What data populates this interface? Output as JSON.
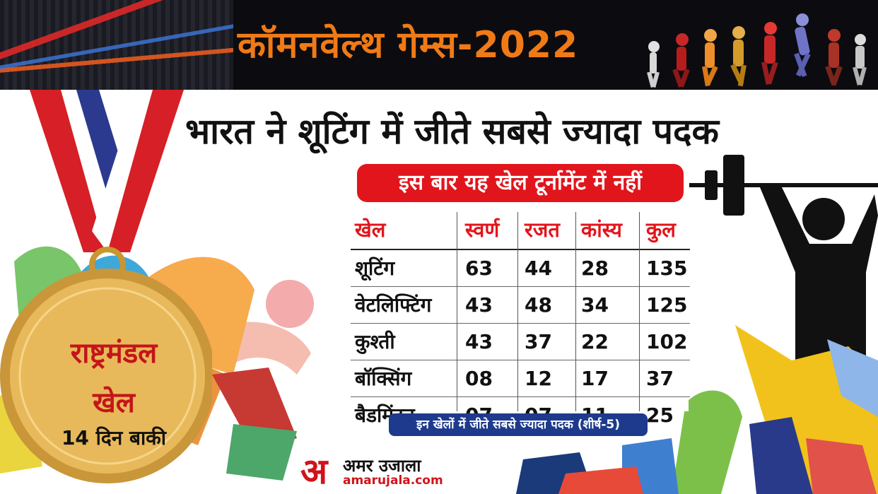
{
  "banner": {
    "title": "कॉमनवेल्थ गेम्स-2022"
  },
  "headline": "भारत ने शूटिंग में जीते सबसे ज्यादा पदक",
  "subheading": "इस बार यह खेल टूर्नामेंट में नहीं",
  "table": {
    "headers": [
      "खेल",
      "स्वर्ण",
      "रजत",
      "कांस्य",
      "कुल"
    ],
    "rows": [
      [
        "शूटिंग",
        "63",
        "44",
        "28",
        "135"
      ],
      [
        "वेटलिफ्टिंग",
        "43",
        "48",
        "34",
        "125"
      ],
      [
        "कुश्ती",
        "43",
        "37",
        "22",
        "102"
      ],
      [
        "बॉक्सिंग",
        "08",
        "12",
        "17",
        "37"
      ],
      [
        "बैडमिंटन",
        "07",
        "07",
        "11",
        "25"
      ]
    ]
  },
  "footnote": "इन खेलों में जीते सबसे ज्यादा पदक (शीर्ष-5)",
  "medal": {
    "line1": "राष्ट्रमंडल",
    "line2": "खेल",
    "line3": "14 दिन बाकी"
  },
  "logo": {
    "glyph": "अ",
    "name": "अमर उजाला",
    "url": "amarujala.com"
  },
  "colors": {
    "accent_red": "#e2151c",
    "banner_orange": "#f07a16",
    "footnote_blue": "#1e3a8c",
    "medal_gold": "#e3b24a"
  }
}
